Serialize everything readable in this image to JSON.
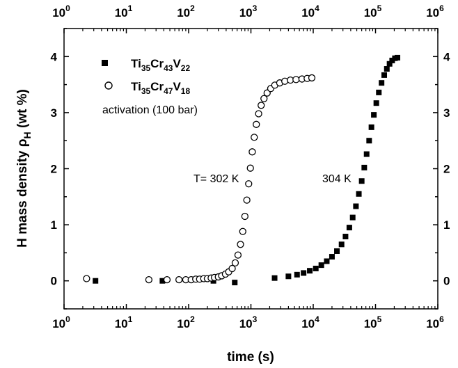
{
  "chart_data": {
    "type": "scatter",
    "xlabel": "time (s)",
    "ylabel_main": "H mass density ρ",
    "ylabel_sub": "H",
    "ylabel_unit": " (wt %)",
    "xscale": "log",
    "xlim": [
      1,
      1000000
    ],
    "ylim": [
      -0.5,
      4.5
    ],
    "x_ticks": [
      {
        "base": "10",
        "exp": "0"
      },
      {
        "base": "10",
        "exp": "1"
      },
      {
        "base": "10",
        "exp": "2"
      },
      {
        "base": "10",
        "exp": "3"
      },
      {
        "base": "10",
        "exp": "4"
      },
      {
        "base": "10",
        "exp": "5"
      },
      {
        "base": "10",
        "exp": "6"
      }
    ],
    "y_ticks": [
      "0",
      "1",
      "2",
      "3",
      "4"
    ],
    "legend": {
      "placement": "top-left",
      "entries": [
        {
          "marker": "filled-square",
          "parts": [
            [
              "Ti",
              "35"
            ],
            [
              "Cr",
              "43"
            ],
            [
              "V",
              "22"
            ]
          ]
        },
        {
          "marker": "open-circle",
          "parts": [
            [
              "Ti",
              "35"
            ],
            [
              "Cr",
              "47"
            ],
            [
              "V",
              "18"
            ]
          ]
        }
      ],
      "note": "activation (100 bar)"
    },
    "annotations": [
      {
        "text": "T= 302 K",
        "at": [
          1000,
          2.0
        ]
      },
      {
        "text": "304 K",
        "at": [
          75000,
          2.0
        ]
      }
    ],
    "series": [
      {
        "marker": "filled-square",
        "points": [
          [
            3.2,
            0.0
          ],
          [
            38,
            0.0
          ],
          [
            250,
            0.0
          ],
          [
            550,
            -0.03
          ],
          [
            2400,
            0.05
          ],
          [
            4000,
            0.08
          ],
          [
            5500,
            0.11
          ],
          [
            7000,
            0.14
          ],
          [
            8800,
            0.18
          ],
          [
            11000,
            0.22
          ],
          [
            13500,
            0.28
          ],
          [
            16500,
            0.35
          ],
          [
            20000,
            0.43
          ],
          [
            24000,
            0.53
          ],
          [
            28500,
            0.65
          ],
          [
            33000,
            0.79
          ],
          [
            38000,
            0.95
          ],
          [
            43000,
            1.13
          ],
          [
            48500,
            1.33
          ],
          [
            54000,
            1.55
          ],
          [
            60000,
            1.78
          ],
          [
            66000,
            2.02
          ],
          [
            72000,
            2.26
          ],
          [
            79000,
            2.5
          ],
          [
            86000,
            2.74
          ],
          [
            94000,
            2.96
          ],
          [
            103000,
            3.17
          ],
          [
            113000,
            3.36
          ],
          [
            125000,
            3.53
          ],
          [
            138000,
            3.67
          ],
          [
            152000,
            3.78
          ],
          [
            168000,
            3.87
          ],
          [
            185000,
            3.93
          ],
          [
            205000,
            3.97
          ],
          [
            225000,
            3.98
          ]
        ]
      },
      {
        "marker": "open-circle",
        "points": [
          [
            2.3,
            0.04
          ],
          [
            23,
            0.02
          ],
          [
            45,
            0.02
          ],
          [
            70,
            0.02
          ],
          [
            90,
            0.02
          ],
          [
            110,
            0.02
          ],
          [
            130,
            0.03
          ],
          [
            150,
            0.03
          ],
          [
            175,
            0.04
          ],
          [
            200,
            0.04
          ],
          [
            230,
            0.05
          ],
          [
            260,
            0.06
          ],
          [
            300,
            0.07
          ],
          [
            340,
            0.09
          ],
          [
            390,
            0.12
          ],
          [
            440,
            0.16
          ],
          [
            500,
            0.22
          ],
          [
            560,
            0.32
          ],
          [
            620,
            0.46
          ],
          [
            680,
            0.65
          ],
          [
            740,
            0.88
          ],
          [
            800,
            1.15
          ],
          [
            860,
            1.44
          ],
          [
            920,
            1.73
          ],
          [
            980,
            2.01
          ],
          [
            1050,
            2.3
          ],
          [
            1130,
            2.56
          ],
          [
            1220,
            2.79
          ],
          [
            1330,
            2.98
          ],
          [
            1460,
            3.13
          ],
          [
            1620,
            3.25
          ],
          [
            1820,
            3.35
          ],
          [
            2080,
            3.43
          ],
          [
            2420,
            3.49
          ],
          [
            2900,
            3.53
          ],
          [
            3500,
            3.56
          ],
          [
            4300,
            3.58
          ],
          [
            5300,
            3.59
          ],
          [
            6600,
            3.6
          ],
          [
            8000,
            3.61
          ],
          [
            9500,
            3.62
          ]
        ]
      }
    ]
  }
}
